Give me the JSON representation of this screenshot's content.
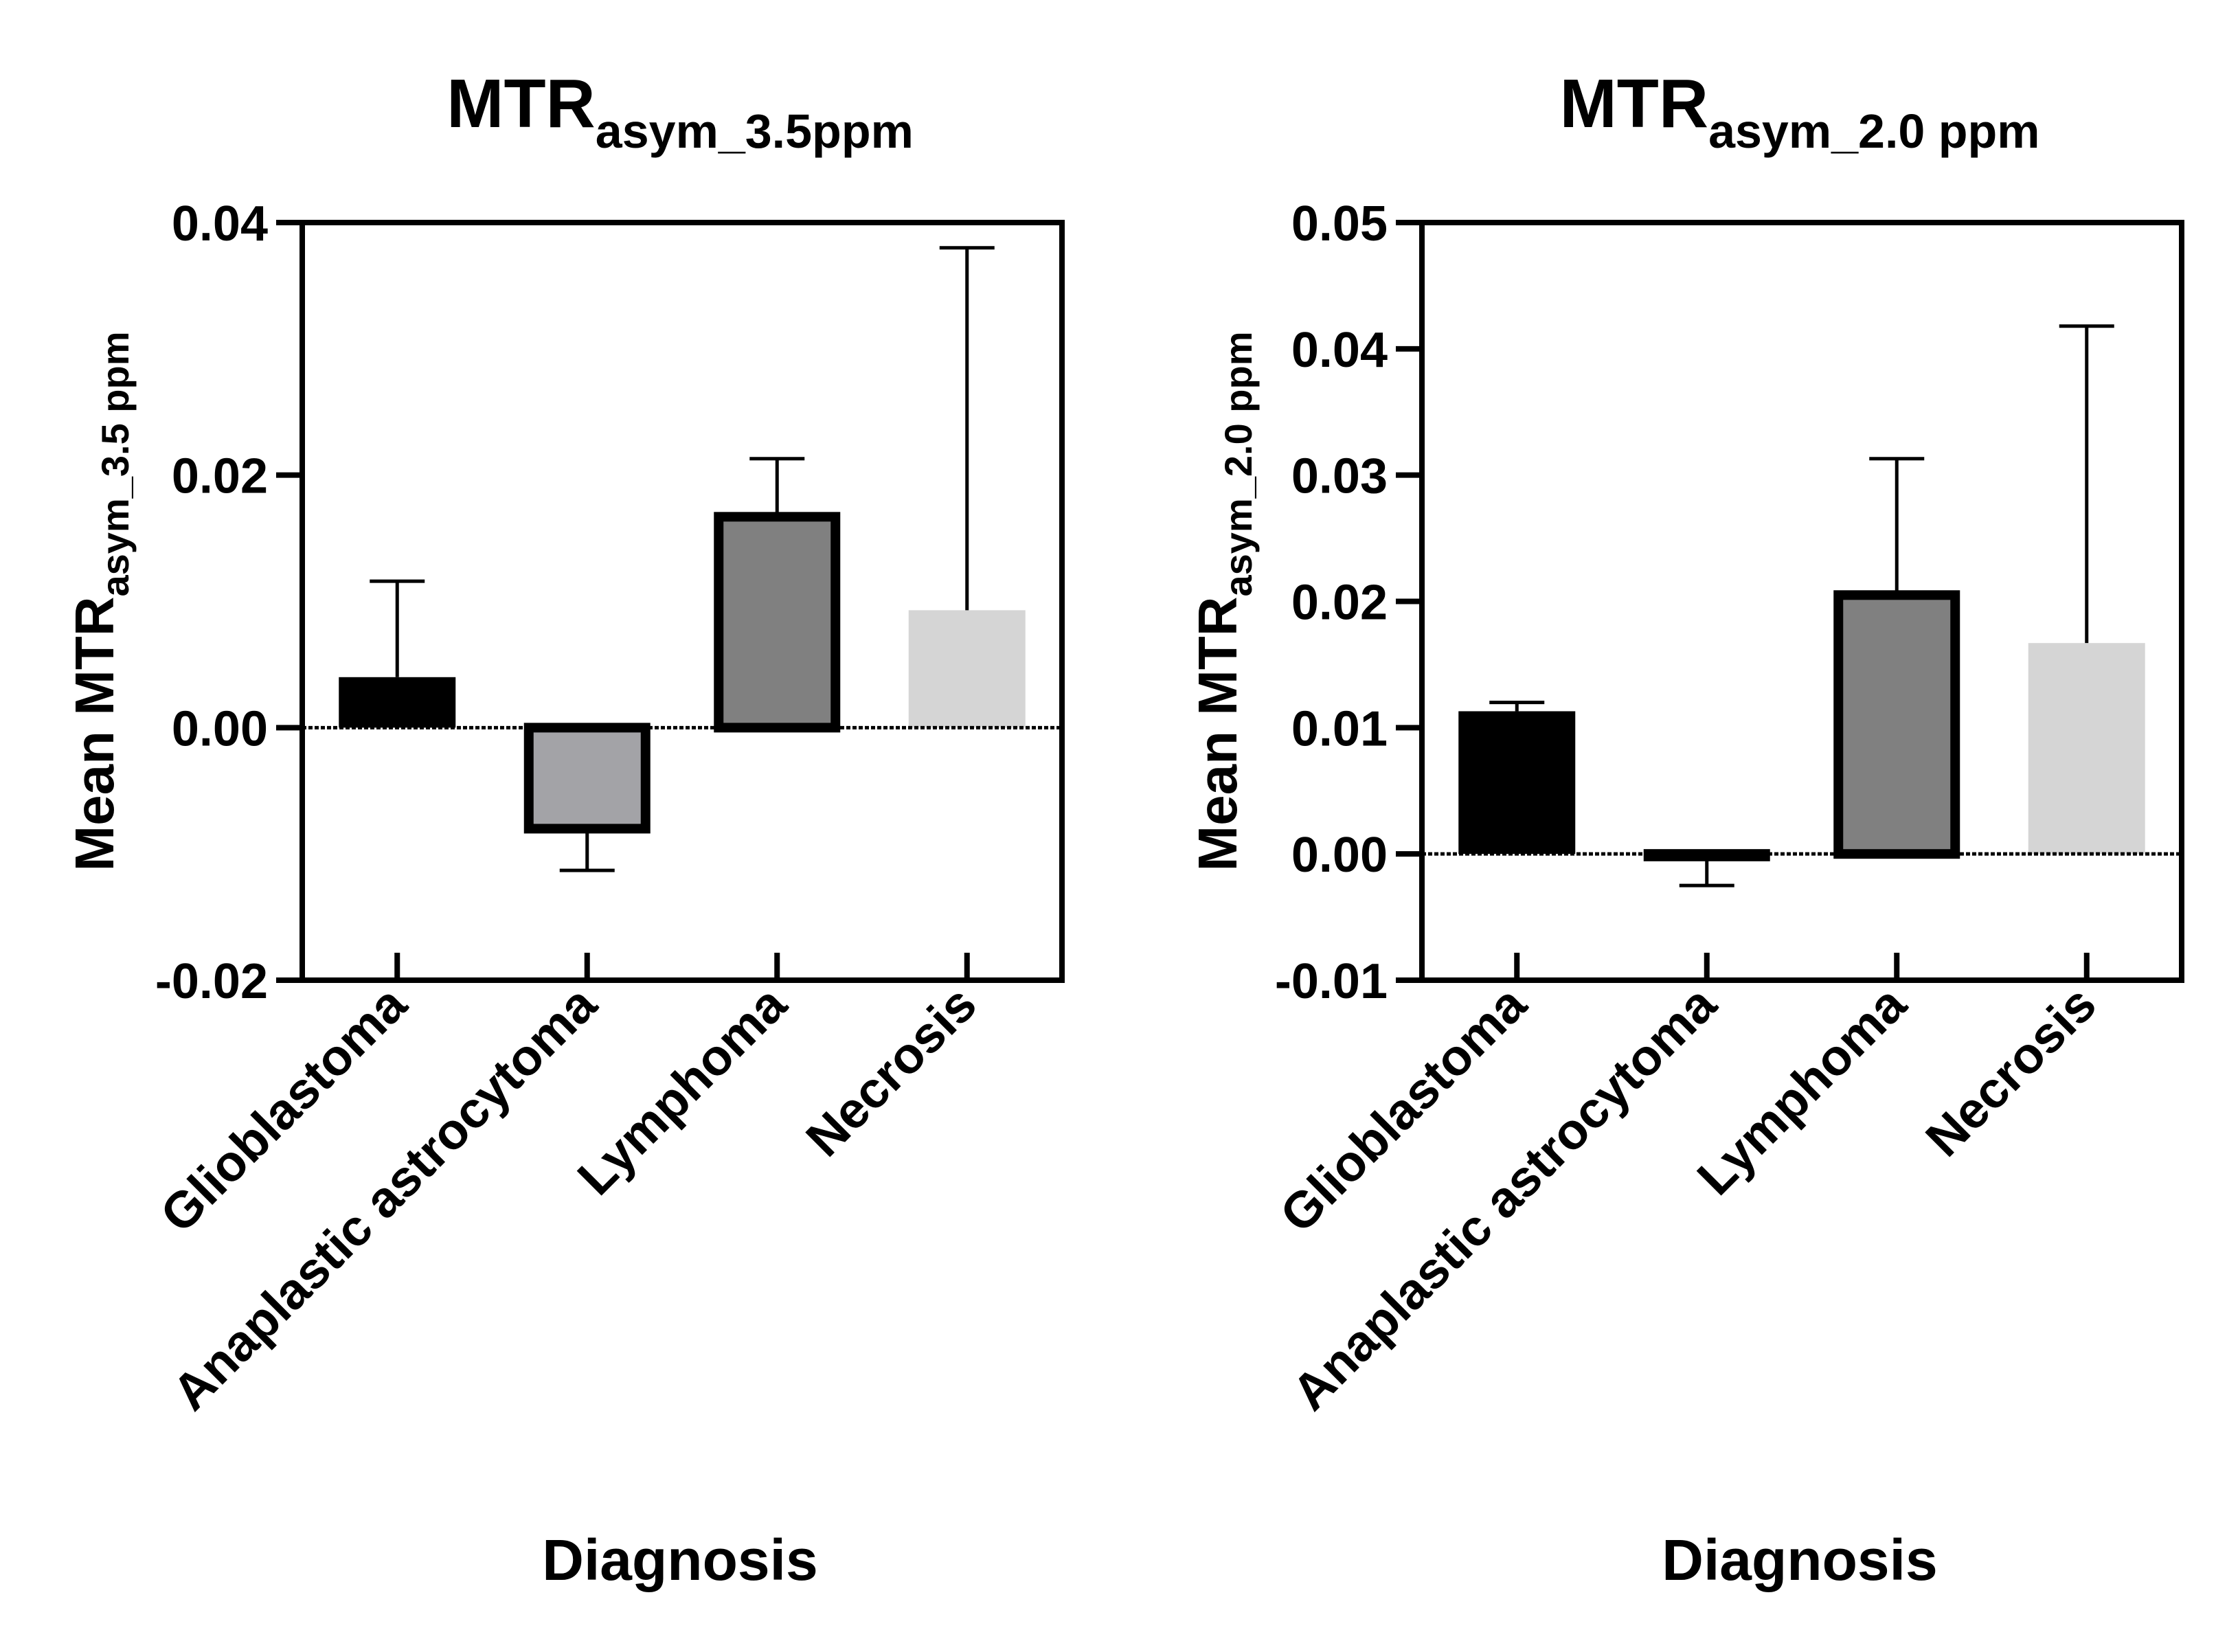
{
  "figure": {
    "x_axis_title": "Diagnosis",
    "categories": [
      "Glioblastoma",
      "Anaplastic astrocytoma",
      "Lymphoma",
      "Necrosis"
    ],
    "category_fills": [
      "#000000",
      "#a3a3a7",
      "#808080",
      "#d5d5d5"
    ],
    "category_outlined": [
      false,
      true,
      true,
      false
    ]
  },
  "chart_data": [
    {
      "type": "bar",
      "title_main": "MTR",
      "title_sub": "asym_3.5ppm",
      "ylabel_main": "Mean MTR",
      "ylabel_sub": "asym_3.5 ppm",
      "xlabel": "Diagnosis",
      "categories": [
        "Glioblastoma",
        "Anaplastic astrocytoma",
        "Lymphoma",
        "Necrosis"
      ],
      "values": [
        0.004,
        -0.008,
        0.0167,
        0.0093
      ],
      "error_upper": [
        0.0116,
        -0.0113,
        0.0213,
        0.038
      ],
      "ylim": [
        -0.02,
        0.04
      ],
      "yticks": [
        -0.02,
        0.0,
        0.02,
        0.04
      ],
      "ytick_labels": [
        "-0.02",
        "0.00",
        "0.02",
        "0.04"
      ]
    },
    {
      "type": "bar",
      "title_main": "MTR",
      "title_sub": "asym_2.0 ppm",
      "ylabel_main": "Mean MTR",
      "ylabel_sub": "asym_2.0 ppm",
      "xlabel": "Diagnosis",
      "categories": [
        "Glioblastoma",
        "Anaplastic astrocytoma",
        "Lymphoma",
        "Necrosis"
      ],
      "values": [
        0.0113,
        -0.0002,
        0.0205,
        0.0167
      ],
      "error_upper": [
        0.012,
        -0.0025,
        0.0313,
        0.0418
      ],
      "ylim": [
        -0.01,
        0.05
      ],
      "yticks": [
        -0.01,
        0.0,
        0.01,
        0.02,
        0.03,
        0.04,
        0.05
      ],
      "ytick_labels": [
        "-0.01",
        "0.00",
        "0.01",
        "0.02",
        "0.03",
        "0.04",
        "0.05"
      ]
    }
  ]
}
